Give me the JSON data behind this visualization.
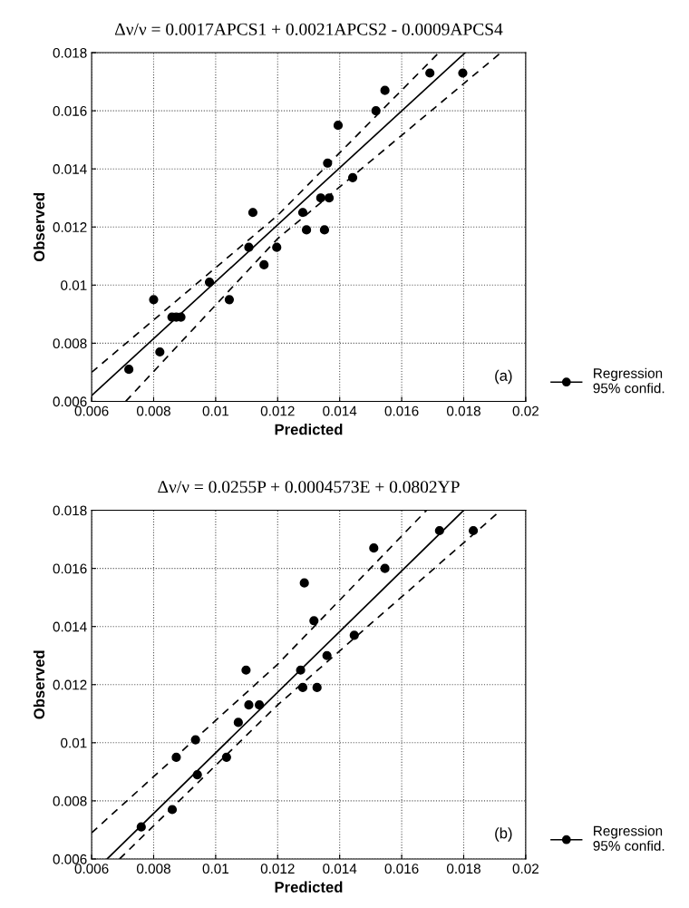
{
  "chart_data": [
    {
      "type": "scatter",
      "title": "Δν/ν = 0.0017APCS1 + 0.0021APCS2 - 0.0009APCS4",
      "xlabel": "Predicted",
      "ylabel": "Observed",
      "annotations": [
        "(a)"
      ],
      "series": [
        {
          "name": "Regression\n95% confid.",
          "color": "#000000",
          "marker": "circle",
          "x": [
            0.0072,
            0.0082,
            0.00859,
            0.00873,
            0.00888,
            0.008,
            0.0098,
            0.01044,
            0.01107,
            0.0112,
            0.01156,
            0.01197,
            0.01281,
            0.01293,
            0.01351,
            0.01339,
            0.01366,
            0.01361,
            0.01395,
            0.01442,
            0.01517,
            0.01546,
            0.01691,
            0.01797
          ],
          "values": [
            0.0071,
            0.0077,
            0.0089,
            0.0089,
            0.0089,
            0.0095,
            0.0101,
            0.0095,
            0.0113,
            0.0125,
            0.0107,
            0.0113,
            0.0125,
            0.0119,
            0.0119,
            0.013,
            0.013,
            0.0142,
            0.0155,
            0.0137,
            0.016,
            0.0167,
            0.0173,
            0.0173
          ]
        },
        {
          "type": "line",
          "color": "#000000",
          "line_style": "solid",
          "x": [
            0.006,
            0.01805
          ],
          "values": [
            0.0062,
            0.018
          ]
        },
        {
          "type": "line",
          "color": "#000000",
          "line_style": "dashed",
          "x": [
            0.006,
            0.012,
            0.0172
          ],
          "values": [
            0.007,
            0.0124,
            0.018
          ]
        },
        {
          "type": "line",
          "color": "#000000",
          "line_style": "dashed",
          "x": [
            0.0071,
            0.012,
            0.0192
          ],
          "values": [
            0.006,
            0.0116,
            0.018
          ]
        }
      ],
      "xlim": [
        0.006,
        0.02
      ],
      "ylim": [
        0.006,
        0.018
      ],
      "xticks": [
        0.006,
        0.008,
        0.01,
        0.012,
        0.014,
        0.016,
        0.018,
        0.02
      ],
      "yticks": [
        0.006,
        0.008,
        0.01,
        0.012,
        0.014,
        0.016,
        0.018
      ],
      "grid": true,
      "legend": "bottom right"
    },
    {
      "type": "scatter",
      "title": "Δν/ν = 0.0255P + 0.0004573E + 0.0802YP",
      "xlabel": "Predicted",
      "ylabel": "Observed",
      "annotations": [
        "(b)"
      ],
      "series": [
        {
          "name": "Regression\n95% confid.",
          "color": "#000000",
          "marker": "circle",
          "x": [
            0.0076,
            0.0086,
            0.00873,
            0.00935,
            0.00941,
            0.01035,
            0.01073,
            0.01098,
            0.01107,
            0.01141,
            0.01274,
            0.01281,
            0.01286,
            0.01317,
            0.01327,
            0.01359,
            0.01447,
            0.0151,
            0.01546,
            0.01722,
            0.01831
          ],
          "values": [
            0.0071,
            0.0077,
            0.0095,
            0.0101,
            0.0089,
            0.0095,
            0.0107,
            0.0125,
            0.0113,
            0.0113,
            0.0125,
            0.0119,
            0.0155,
            0.0142,
            0.0119,
            0.013,
            0.0137,
            0.0167,
            0.016,
            0.0173,
            0.0173
          ]
        },
        {
          "type": "line",
          "color": "#000000",
          "line_style": "solid",
          "x": [
            0.0065,
            0.018
          ],
          "values": [
            0.006,
            0.018
          ]
        },
        {
          "type": "line",
          "color": "#000000",
          "line_style": "dashed",
          "x": [
            0.006,
            0.012,
            0.0168
          ],
          "values": [
            0.0069,
            0.0127,
            0.018
          ]
        },
        {
          "type": "line",
          "color": "#000000",
          "line_style": "dashed",
          "x": [
            0.0069,
            0.012,
            0.0192
          ],
          "values": [
            0.006,
            0.0113,
            0.018
          ]
        }
      ],
      "xlim": [
        0.006,
        0.02
      ],
      "ylim": [
        0.006,
        0.018
      ],
      "xticks": [
        0.006,
        0.008,
        0.01,
        0.012,
        0.014,
        0.016,
        0.018,
        0.02
      ],
      "yticks": [
        0.006,
        0.008,
        0.01,
        0.012,
        0.014,
        0.016,
        0.018
      ],
      "grid": true,
      "legend": "bottom right"
    }
  ]
}
